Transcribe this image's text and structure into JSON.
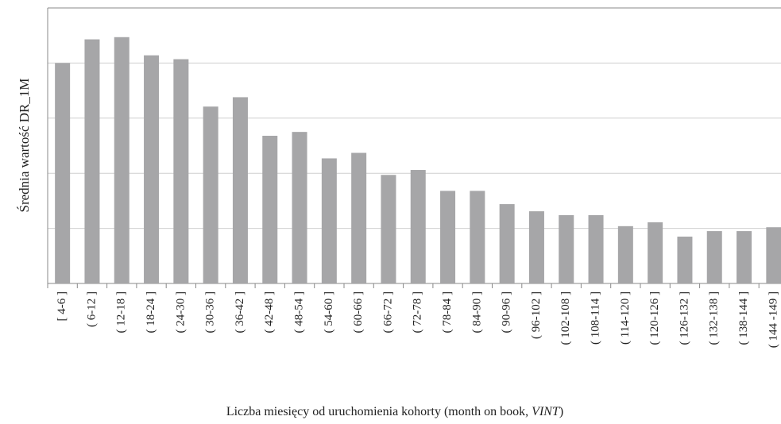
{
  "chart_data": {
    "type": "bar",
    "ylabel": "Średnia wartość DR_1M",
    "xlabel": {
      "text": "Liczba miesięcy od uruchomienia kohorty (month on book, ",
      "italic": "VINT",
      "end": ")"
    },
    "categories": [
      "[ 4-6 ]",
      "( 6-12 ]",
      "( 12-18 ]",
      "( 18-24 ]",
      "( 24-30 ]",
      "( 30-36 ]",
      "( 36-42 ]",
      "( 42-48 ]",
      "( 48-54 ]",
      "( 54-60 ]",
      "( 60-66 ]",
      "( 66-72 ]",
      "( 72-78 ]",
      "( 78-84 ]",
      "( 84-90 ]",
      "( 90-96 ]",
      "( 96-102 ]",
      "( 102-108 ]",
      "( 108-114 ]",
      "( 114-120 ]",
      "( 120-126 ]",
      "( 126-132 ]",
      "( 132-138 ]",
      "( 138-144 ]",
      "( 144 -149 ]"
    ],
    "values": [
      4.0,
      4.43,
      4.47,
      4.14,
      4.07,
      3.21,
      3.38,
      2.68,
      2.75,
      2.27,
      2.37,
      1.97,
      2.06,
      1.68,
      1.68,
      1.44,
      1.31,
      1.24,
      1.24,
      1.04,
      1.11,
      0.85,
      0.95,
      0.95,
      1.02
    ],
    "color": "#a6a6a8",
    "ylim": [
      0,
      5
    ],
    "yticks": [
      0,
      1,
      2,
      3,
      4,
      5
    ],
    "grid": true
  }
}
